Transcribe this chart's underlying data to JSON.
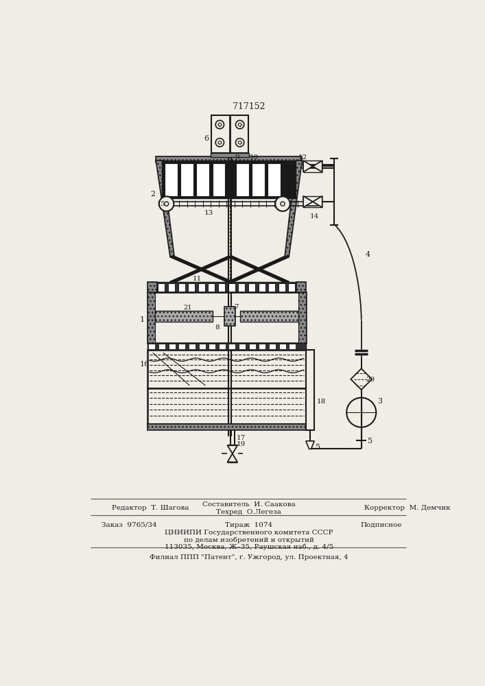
{
  "patent_number": "717152",
  "bg_color": "#f0ede6",
  "line_color": "#1a1a1a",
  "footer": {
    "editor": "Редактор  Т. Шагова",
    "composer": "Составитель  И. Саакова",
    "techred": "Техред  О.Легеза",
    "corrector": "Корректор  М. Демчик",
    "order": "Заказ  9765/34",
    "tirazh": "Тираж  1074",
    "podpisnoe": "Подписное",
    "cniipи": "ЦНИИПИ Государственного комитета СССР",
    "po_delam": "по делам изобретений и открытий",
    "address": "113035, Москва, Ж–35, Раушская наб., д. 4/5",
    "filial": "Филиал ППП \"Патент\", г. Ужгород, ул. Проектная, 4"
  }
}
